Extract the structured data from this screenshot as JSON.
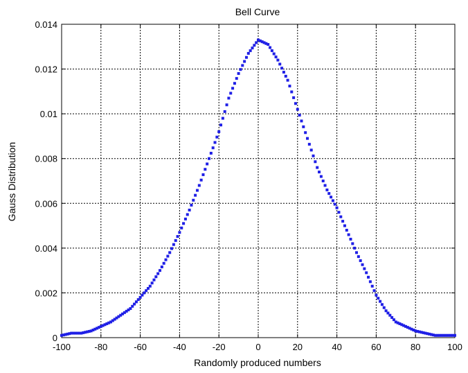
{
  "chart_data": {
    "type": "scatter",
    "title": "Bell Curve",
    "xlabel": "Randomly produced numbers",
    "ylabel": "Gauss Distribution",
    "xlim": [
      -100,
      100
    ],
    "ylim": [
      0,
      0.014
    ],
    "grid": true,
    "legend": "none",
    "x_ticks": [
      -100,
      -80,
      -60,
      -40,
      -20,
      0,
      20,
      40,
      60,
      80,
      100
    ],
    "x_tick_labels": [
      "-100",
      "-80",
      "-60",
      "-40",
      "-20",
      "0",
      "20",
      "40",
      "60",
      "80",
      "100"
    ],
    "y_ticks": [
      0,
      0.002,
      0.004,
      0.006,
      0.008,
      0.01,
      0.012,
      0.014
    ],
    "y_tick_labels": [
      "0",
      "0.002",
      "0.004",
      "0.006",
      "0.008",
      "0.01",
      "0.012",
      "0.014"
    ],
    "marker_color": "#1f1fe6",
    "series": [
      {
        "x": [
          -100,
          -95,
          -90,
          -85,
          -80,
          -75,
          -70,
          -65,
          -60,
          -55,
          -50,
          -45,
          -40,
          -35,
          -30,
          -25,
          -20,
          -15,
          -10,
          -5,
          0,
          5,
          10,
          15,
          20,
          25,
          30,
          35,
          40,
          45,
          50,
          55,
          60,
          65,
          70,
          75,
          80,
          85,
          90,
          95,
          100
        ],
        "y": [
          0.0001,
          0.0002,
          0.0002,
          0.0003,
          0.0005,
          0.0007,
          0.001,
          0.0013,
          0.0018,
          0.0023,
          0.003,
          0.0038,
          0.0047,
          0.0057,
          0.0068,
          0.008,
          0.0092,
          0.0107,
          0.0118,
          0.0127,
          0.0133,
          0.0131,
          0.0124,
          0.0115,
          0.0102,
          0.0089,
          0.0076,
          0.0066,
          0.0058,
          0.0048,
          0.0038,
          0.0029,
          0.0019,
          0.0012,
          0.0007,
          0.0005,
          0.0003,
          0.0002,
          0.0001,
          0.0001,
          0.0001
        ]
      }
    ]
  }
}
